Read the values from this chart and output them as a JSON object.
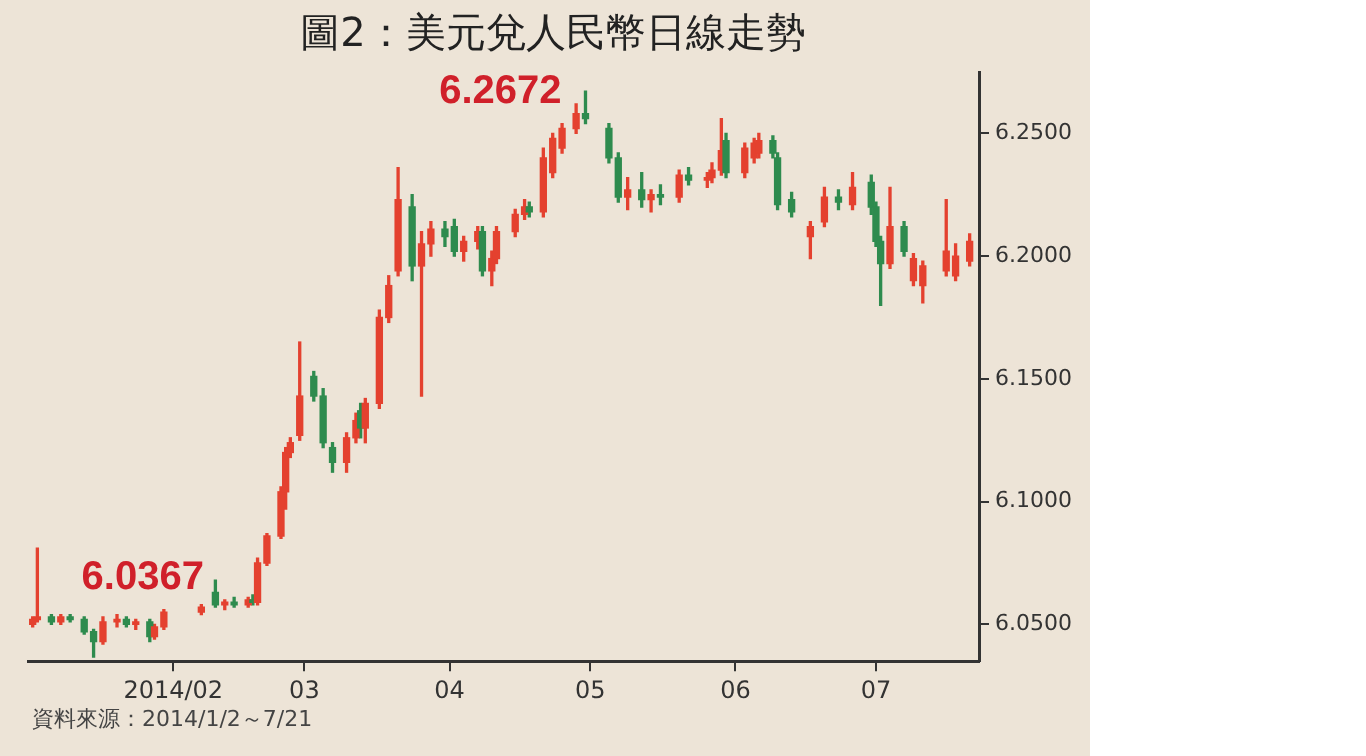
{
  "chart_data": {
    "type": "candlestick",
    "title": "圖2：美元兌人民幣日線走勢",
    "annotations": [
      {
        "text": "6.0367",
        "x": "2014-01-15",
        "y": 6.0367
      },
      {
        "text": "6.2672",
        "x": "2014-04-30",
        "y": 6.2672
      },
      "資料來源：2014/1/2～7/21"
    ],
    "xlim": [
      "2014-01-01",
      "2014-07-23"
    ],
    "xticks": [
      {
        "value": "2014-02-01",
        "label": "2014/02"
      },
      {
        "value": "2014-03-01",
        "label": "03"
      },
      {
        "value": "2014-04-01",
        "label": "04"
      },
      {
        "value": "2014-05-01",
        "label": "05"
      },
      {
        "value": "2014-06-01",
        "label": "06"
      },
      {
        "value": "2014-07-01",
        "label": "07"
      }
    ],
    "ylim": [
      6.035,
      6.275
    ],
    "yticks": [
      {
        "value": 6.05,
        "label": "6.0500"
      },
      {
        "value": 6.1,
        "label": "6.1000"
      },
      {
        "value": 6.15,
        "label": "6.1500"
      },
      {
        "value": 6.2,
        "label": "6.2000"
      },
      {
        "value": 6.25,
        "label": "6.2500"
      }
    ],
    "grid": false,
    "legend": false,
    "x": [
      "2014-01-02",
      "2014-01-03",
      "2014-01-06",
      "2014-01-08",
      "2014-01-10",
      "2014-01-13",
      "2014-01-15",
      "2014-01-17",
      "2014-01-20",
      "2014-01-22",
      "2014-01-24",
      "2014-01-27",
      "2014-01-28",
      "2014-01-30",
      "2014-02-07",
      "2014-02-10",
      "2014-02-12",
      "2014-02-14",
      "2014-02-17",
      "2014-02-18",
      "2014-02-19",
      "2014-02-21",
      "2014-02-24",
      "2014-02-25",
      "2014-02-26",
      "2014-02-28",
      "2014-03-03",
      "2014-03-05",
      "2014-03-07",
      "2014-03-10",
      "2014-03-12",
      "2014-03-13",
      "2014-03-14",
      "2014-03-17",
      "2014-03-19",
      "2014-03-21",
      "2014-03-24",
      "2014-03-26",
      "2014-03-28",
      "2014-03-31",
      "2014-04-02",
      "2014-04-04",
      "2014-04-07",
      "2014-04-08",
      "2014-04-10",
      "2014-04-11",
      "2014-04-15",
      "2014-04-17",
      "2014-04-18",
      "2014-04-21",
      "2014-04-23",
      "2014-04-25",
      "2014-04-28",
      "2014-04-30",
      "2014-05-05",
      "2014-05-07",
      "2014-05-09",
      "2014-05-12",
      "2014-05-14",
      "2014-05-16",
      "2014-05-20",
      "2014-05-22",
      "2014-05-26",
      "2014-05-27",
      "2014-05-29",
      "2014-05-30",
      "2014-06-03",
      "2014-06-05",
      "2014-06-06",
      "2014-06-09",
      "2014-06-10",
      "2014-06-13",
      "2014-06-17",
      "2014-06-20",
      "2014-06-23",
      "2014-06-26",
      "2014-06-30",
      "2014-07-01",
      "2014-07-02",
      "2014-07-04",
      "2014-07-07",
      "2014-07-09",
      "2014-07-11",
      "2014-07-16",
      "2014-07-18",
      "2014-07-21"
    ],
    "ohlc": [
      [
        6.05,
        6.053,
        6.049,
        6.052
      ],
      [
        6.052,
        6.081,
        6.051,
        6.053
      ],
      [
        6.053,
        6.054,
        6.05,
        6.051
      ],
      [
        6.051,
        6.054,
        6.05,
        6.053
      ],
      [
        6.053,
        6.054,
        6.051,
        6.052
      ],
      [
        6.052,
        6.053,
        6.046,
        6.047
      ],
      [
        6.047,
        6.048,
        6.0367,
        6.043
      ],
      [
        6.043,
        6.053,
        6.042,
        6.051
      ],
      [
        6.051,
        6.054,
        6.049,
        6.052
      ],
      [
        6.052,
        6.053,
        6.049,
        6.05
      ],
      [
        6.05,
        6.052,
        6.048,
        6.051
      ],
      [
        6.051,
        6.052,
        6.043,
        6.045
      ],
      [
        6.045,
        6.05,
        6.044,
        6.049
      ],
      [
        6.049,
        6.056,
        6.048,
        6.055
      ],
      [
        6.055,
        6.058,
        6.054,
        6.057
      ],
      [
        6.063,
        6.068,
        6.057,
        6.058
      ],
      [
        6.058,
        6.06,
        6.056,
        6.059
      ],
      [
        6.059,
        6.061,
        6.057,
        6.058
      ],
      [
        6.058,
        6.061,
        6.057,
        6.06
      ],
      [
        6.06,
        6.062,
        6.058,
        6.059
      ],
      [
        6.059,
        6.077,
        6.058,
        6.075
      ],
      [
        6.075,
        6.087,
        6.074,
        6.086
      ],
      [
        6.086,
        6.106,
        6.085,
        6.104
      ],
      [
        6.104,
        6.122,
        6.097,
        6.12
      ],
      [
        6.12,
        6.126,
        6.118,
        6.124
      ],
      [
        6.127,
        6.165,
        6.125,
        6.143
      ],
      [
        6.151,
        6.153,
        6.141,
        6.143
      ],
      [
        6.143,
        6.146,
        6.122,
        6.124
      ],
      [
        6.122,
        6.124,
        6.112,
        6.116
      ],
      [
        6.116,
        6.128,
        6.112,
        6.126
      ],
      [
        6.126,
        6.136,
        6.124,
        6.133
      ],
      [
        6.137,
        6.14,
        6.126,
        6.13
      ],
      [
        6.13,
        6.142,
        6.124,
        6.14
      ],
      [
        6.14,
        6.178,
        6.138,
        6.175
      ],
      [
        6.175,
        6.192,
        6.173,
        6.188
      ],
      [
        6.194,
        6.236,
        6.192,
        6.223
      ],
      [
        6.22,
        6.225,
        6.19,
        6.196
      ],
      [
        6.196,
        6.21,
        6.143,
        6.205
      ],
      [
        6.205,
        6.214,
        6.2,
        6.211
      ],
      [
        6.211,
        6.214,
        6.204,
        6.208
      ],
      [
        6.212,
        6.215,
        6.2,
        6.202
      ],
      [
        6.202,
        6.208,
        6.198,
        6.206
      ],
      [
        6.206,
        6.212,
        6.203,
        6.21
      ],
      [
        6.21,
        6.212,
        6.192,
        6.194
      ],
      [
        6.194,
        6.202,
        6.188,
        6.199
      ],
      [
        6.199,
        6.212,
        6.197,
        6.21
      ],
      [
        6.21,
        6.219,
        6.208,
        6.217
      ],
      [
        6.217,
        6.223,
        6.215,
        6.22
      ],
      [
        6.22,
        6.222,
        6.216,
        6.218
      ],
      [
        6.218,
        6.244,
        6.216,
        6.24
      ],
      [
        6.234,
        6.25,
        6.232,
        6.248
      ],
      [
        6.244,
        6.254,
        6.242,
        6.252
      ],
      [
        6.252,
        6.262,
        6.25,
        6.258
      ],
      [
        6.258,
        6.2672,
        6.254,
        6.256
      ],
      [
        6.252,
        6.254,
        6.238,
        6.24
      ],
      [
        6.24,
        6.242,
        6.222,
        6.224
      ],
      [
        6.224,
        6.232,
        6.219,
        6.227
      ],
      [
        6.227,
        6.234,
        6.22,
        6.223
      ],
      [
        6.223,
        6.227,
        6.218,
        6.225
      ],
      [
        6.225,
        6.229,
        6.221,
        6.224
      ],
      [
        6.224,
        6.235,
        6.222,
        6.233
      ],
      [
        6.233,
        6.236,
        6.229,
        6.231
      ],
      [
        6.231,
        6.234,
        6.228,
        6.232
      ],
      [
        6.232,
        6.238,
        6.23,
        6.235
      ],
      [
        6.235,
        6.256,
        6.233,
        6.243
      ],
      [
        6.247,
        6.25,
        6.232,
        6.234
      ],
      [
        6.234,
        6.246,
        6.232,
        6.244
      ],
      [
        6.24,
        6.248,
        6.238,
        6.246
      ],
      [
        6.242,
        6.25,
        6.24,
        6.247
      ],
      [
        6.247,
        6.249,
        6.24,
        6.242
      ],
      [
        6.24,
        6.242,
        6.219,
        6.221
      ],
      [
        6.223,
        6.226,
        6.216,
        6.218
      ],
      [
        6.208,
        6.214,
        6.199,
        6.212
      ],
      [
        6.214,
        6.228,
        6.212,
        6.224
      ],
      [
        6.224,
        6.227,
        6.219,
        6.222
      ],
      [
        6.221,
        6.234,
        6.219,
        6.228
      ],
      [
        6.23,
        6.233,
        6.217,
        6.22
      ],
      [
        6.22,
        6.222,
        6.204,
        6.206
      ],
      [
        6.206,
        6.208,
        6.18,
        6.197
      ],
      [
        6.197,
        6.228,
        6.195,
        6.212
      ],
      [
        6.212,
        6.214,
        6.2,
        6.202
      ],
      [
        6.19,
        6.201,
        6.188,
        6.199
      ],
      [
        6.188,
        6.198,
        6.181,
        6.196
      ],
      [
        6.194,
        6.223,
        6.192,
        6.202
      ],
      [
        6.192,
        6.205,
        6.19,
        6.2
      ],
      [
        6.198,
        6.209,
        6.196,
        6.206
      ]
    ],
    "colors": [
      "#e4412f",
      "#e4412f",
      "#2e8b4e",
      "#e4412f",
      "#2e8b4e",
      "#2e8b4e",
      "#2e8b4e",
      "#e4412f",
      "#e4412f",
      "#2e8b4e",
      "#e4412f",
      "#2e8b4e",
      "#e4412f",
      "#e4412f",
      "#e4412f",
      "#2e8b4e",
      "#e4412f",
      "#2e8b4e",
      "#e4412f",
      "#2e8b4e",
      "#e4412f",
      "#e4412f",
      "#e4412f",
      "#e4412f",
      "#e4412f",
      "#e4412f",
      "#2e8b4e",
      "#2e8b4e",
      "#2e8b4e",
      "#e4412f",
      "#e4412f",
      "#2e8b4e",
      "#e4412f",
      "#e4412f",
      "#e4412f",
      "#e4412f",
      "#2e8b4e",
      "#e4412f",
      "#e4412f",
      "#2e8b4e",
      "#2e8b4e",
      "#e4412f",
      "#e4412f",
      "#2e8b4e",
      "#e4412f",
      "#e4412f",
      "#e4412f",
      "#e4412f",
      "#2e8b4e",
      "#e4412f",
      "#e4412f",
      "#e4412f",
      "#e4412f",
      "#2e8b4e",
      "#2e8b4e",
      "#2e8b4e",
      "#e4412f",
      "#2e8b4e",
      "#e4412f",
      "#2e8b4e",
      "#e4412f",
      "#2e8b4e",
      "#e4412f",
      "#e4412f",
      "#e4412f",
      "#2e8b4e",
      "#e4412f",
      "#e4412f",
      "#e4412f",
      "#2e8b4e",
      "#2e8b4e",
      "#2e8b4e",
      "#e4412f",
      "#e4412f",
      "#2e8b4e",
      "#e4412f",
      "#2e8b4e",
      "#2e8b4e",
      "#2e8b4e",
      "#e4412f",
      "#2e8b4e",
      "#e4412f",
      "#e4412f",
      "#e4412f",
      "#e4412f",
      "#e4412f"
    ]
  }
}
